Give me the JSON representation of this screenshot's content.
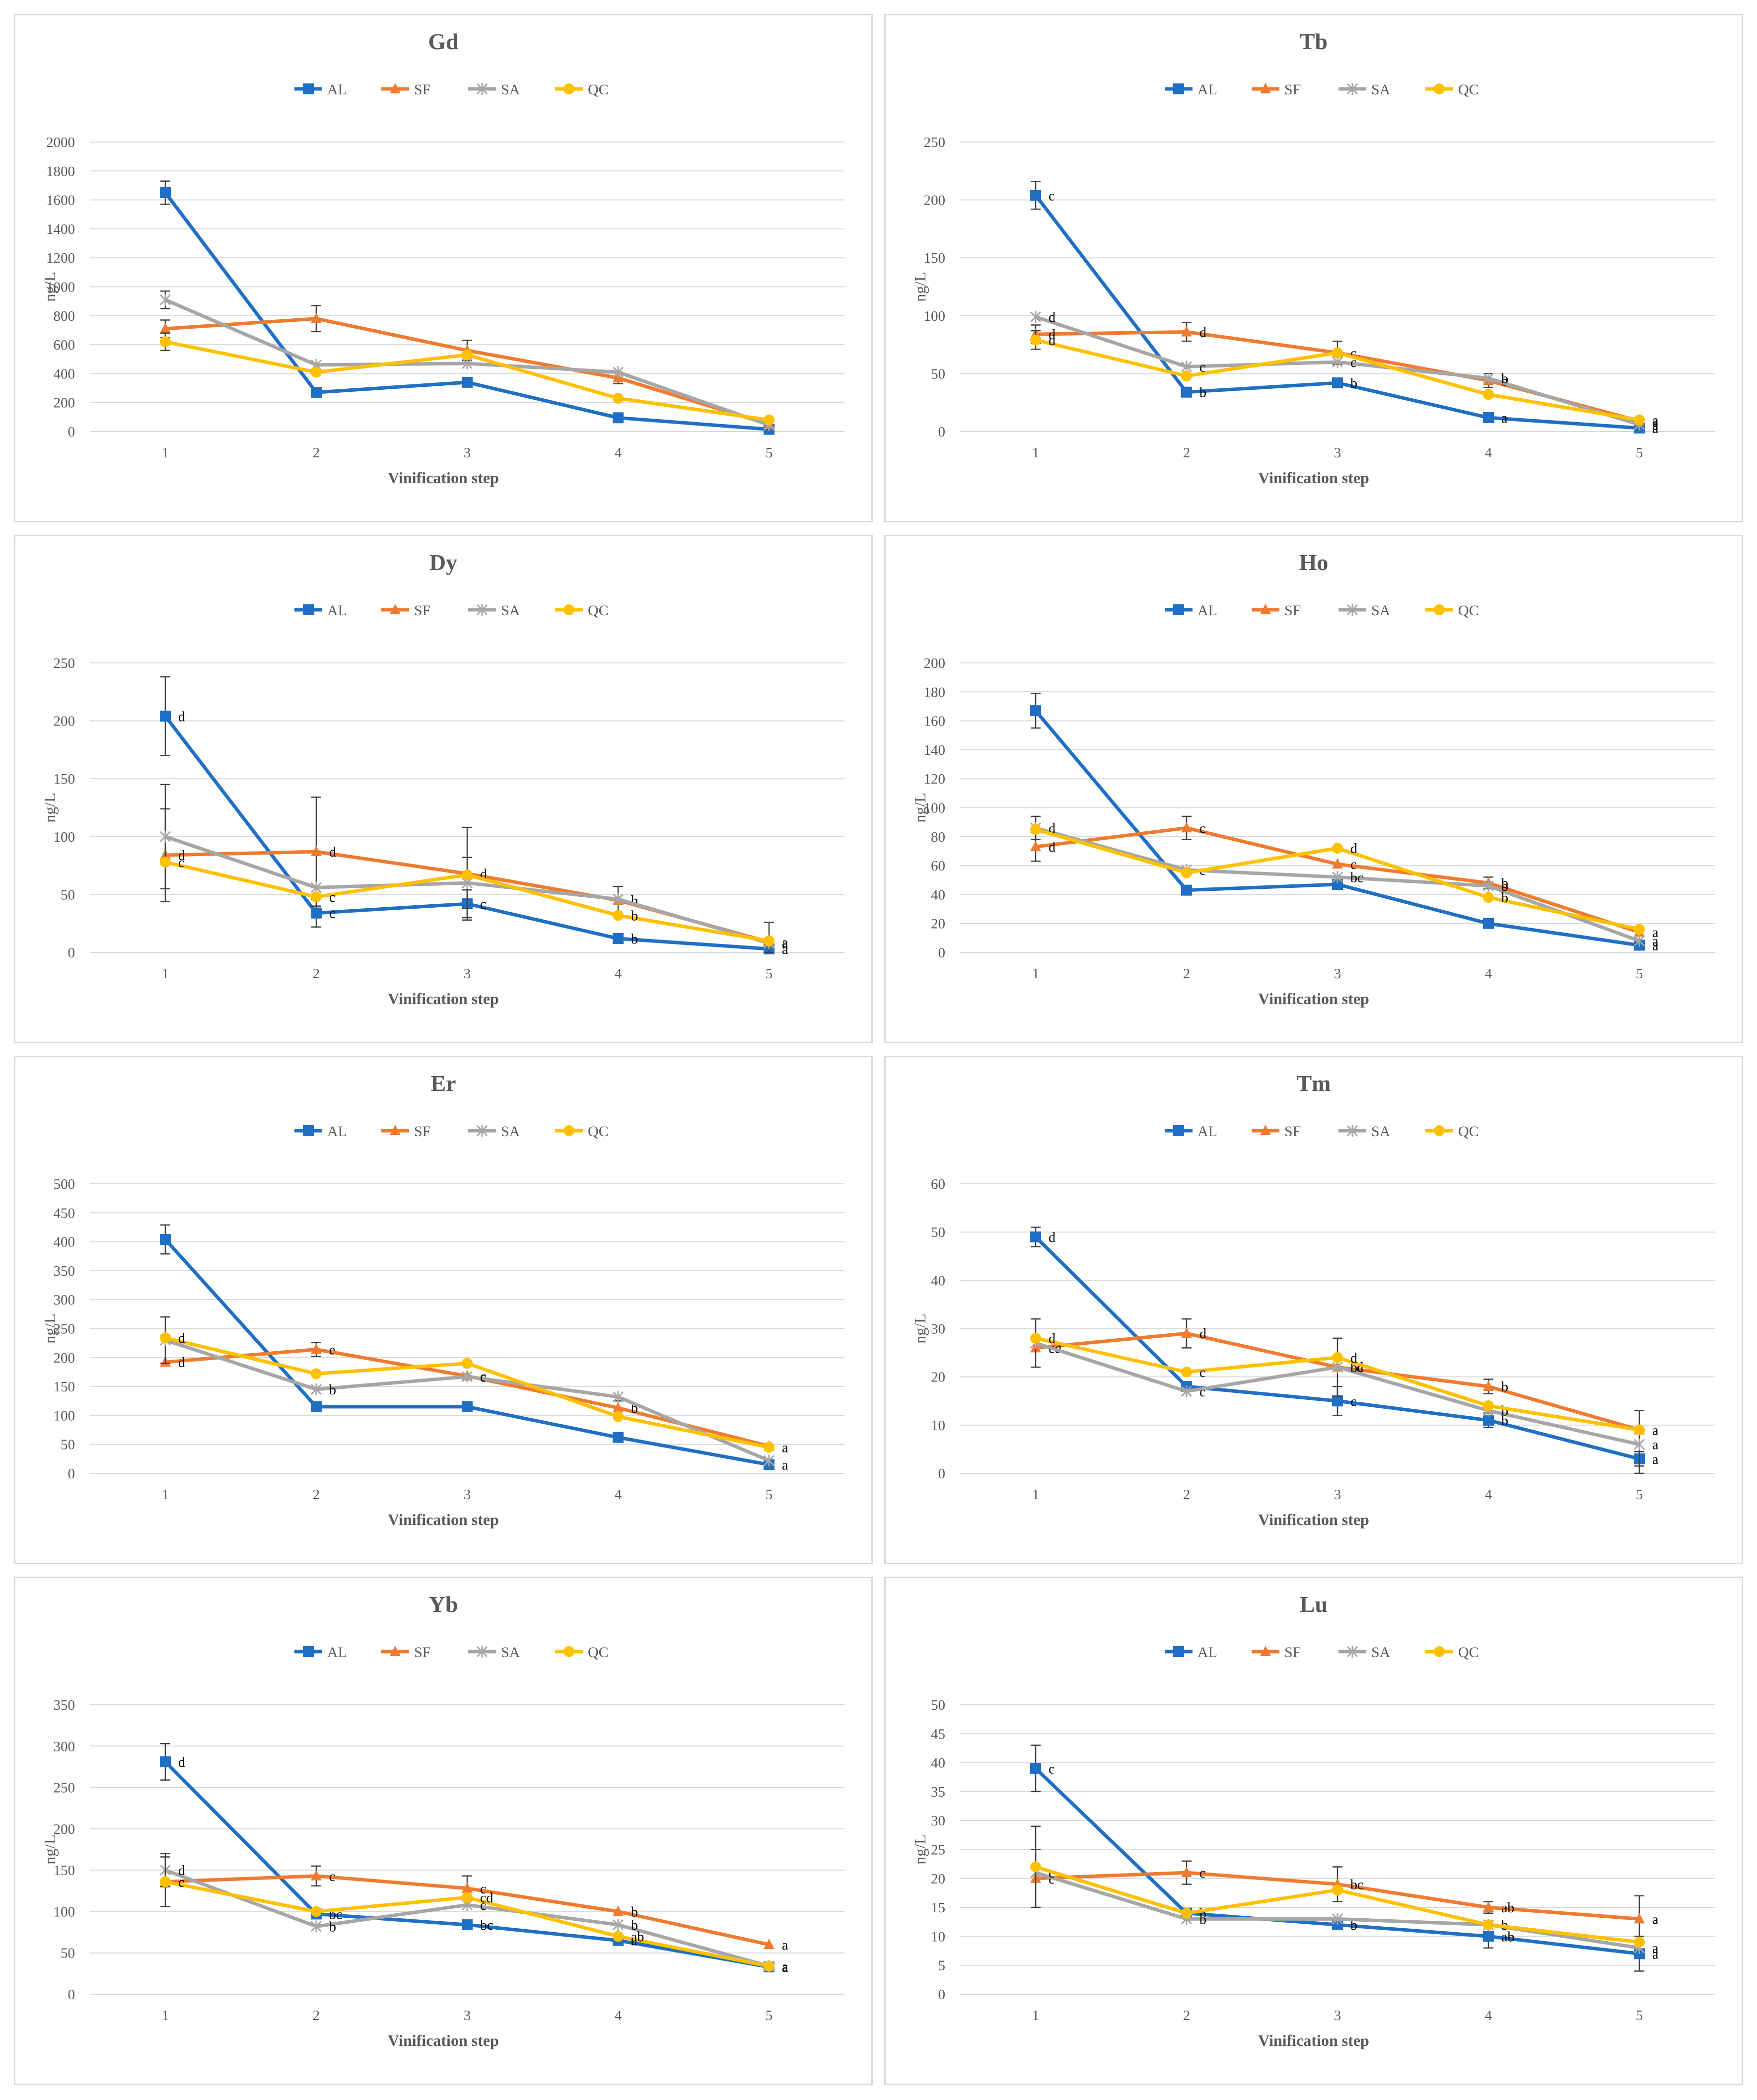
{
  "colors": {
    "AL": "#1f6fc5",
    "SF": "#f07b2f",
    "SA": "#a6a6a6",
    "QC": "#ffc000",
    "grid": "#d9d9d9",
    "text": "#595959"
  },
  "legend": [
    "AL",
    "SF",
    "SA",
    "QC"
  ],
  "chart_data": [
    {
      "type": "line",
      "title": "Gd",
      "xlabel": "Vinification step",
      "ylabel": "ng/L",
      "categories": [
        "1",
        "2",
        "3",
        "4",
        "5"
      ],
      "ylim": [
        0,
        2000
      ],
      "yticks": [
        "0",
        "200",
        "400",
        "600",
        "800",
        "1000",
        "1200",
        "1400",
        "1600",
        "1800",
        "2000"
      ],
      "series": [
        {
          "name": "AL",
          "values": [
            1650,
            270,
            340,
            95,
            15
          ],
          "errors": [
            80,
            0,
            0,
            0,
            0
          ],
          "letters": [
            "",
            "",
            "",
            "",
            ""
          ]
        },
        {
          "name": "SF",
          "values": [
            710,
            780,
            560,
            370,
            50
          ],
          "errors": [
            60,
            90,
            70,
            40,
            0
          ],
          "letters": [
            "",
            "",
            "",
            "",
            ""
          ]
        },
        {
          "name": "SA",
          "values": [
            910,
            460,
            470,
            410,
            45
          ],
          "errors": [
            60,
            0,
            0,
            0,
            0
          ],
          "letters": [
            "",
            "",
            "",
            "",
            ""
          ]
        },
        {
          "name": "QC",
          "values": [
            620,
            410,
            530,
            230,
            80
          ],
          "errors": [
            60,
            0,
            0,
            0,
            0
          ],
          "letters": [
            "",
            "",
            "",
            "",
            ""
          ]
        }
      ]
    },
    {
      "type": "line",
      "title": "Tb",
      "xlabel": "Vinification step",
      "ylabel": "ng/L",
      "categories": [
        "1",
        "2",
        "3",
        "4",
        "5"
      ],
      "ylim": [
        0,
        250
      ],
      "yticks": [
        "0",
        "50",
        "100",
        "150",
        "200",
        "250"
      ],
      "series": [
        {
          "name": "AL",
          "values": [
            204,
            34,
            42,
            12,
            3
          ],
          "errors": [
            12,
            0,
            0,
            0,
            0
          ],
          "letters": [
            "c",
            "b",
            "b",
            "a",
            "a"
          ]
        },
        {
          "name": "SF",
          "values": [
            84,
            86,
            68,
            44,
            9
          ],
          "errors": [
            8,
            8,
            10,
            6,
            0
          ],
          "letters": [
            "d",
            "d",
            "c",
            "b",
            "a"
          ]
        },
        {
          "name": "SA",
          "values": [
            99,
            56,
            60,
            46,
            6
          ],
          "errors": [
            0,
            0,
            0,
            0,
            0
          ],
          "letters": [
            "d",
            "c",
            "c",
            "b",
            "a"
          ]
        },
        {
          "name": "QC",
          "values": [
            79,
            48,
            68,
            32,
            10
          ],
          "errors": [
            8,
            0,
            0,
            0,
            0
          ],
          "letters": [
            "d",
            "",
            "",
            "",
            "a"
          ]
        }
      ]
    },
    {
      "type": "line",
      "title": "Dy",
      "xlabel": "Vinification step",
      "ylabel": "ng/L",
      "categories": [
        "1",
        "2",
        "3",
        "4",
        "5"
      ],
      "ylim": [
        0,
        250
      ],
      "yticks": [
        "0",
        "50",
        "100",
        "150",
        "200",
        "250"
      ],
      "series": [
        {
          "name": "AL",
          "values": [
            204,
            34,
            42,
            12,
            3
          ],
          "errors": [
            34,
            12,
            12,
            0,
            0
          ],
          "letters": [
            "d",
            "c",
            "c",
            "b",
            "a"
          ]
        },
        {
          "name": "SF",
          "values": [
            84,
            87,
            68,
            45,
            9
          ],
          "errors": [
            40,
            47,
            40,
            12,
            0
          ],
          "letters": [
            "d",
            "d",
            "d",
            "b",
            "a"
          ]
        },
        {
          "name": "SA",
          "values": [
            100,
            56,
            60,
            46,
            8
          ],
          "errors": [
            45,
            0,
            22,
            0,
            18
          ],
          "letters": [
            "",
            "",
            "",
            "",
            "a"
          ]
        },
        {
          "name": "QC",
          "values": [
            78,
            48,
            67,
            32,
            10
          ],
          "errors": [
            0,
            0,
            0,
            0,
            0
          ],
          "letters": [
            "c",
            "c",
            "",
            "b",
            ""
          ]
        }
      ]
    },
    {
      "type": "line",
      "title": "Ho",
      "xlabel": "Vinification step",
      "ylabel": "ng/L",
      "categories": [
        "1",
        "2",
        "3",
        "4",
        "5"
      ],
      "ylim": [
        0,
        200
      ],
      "yticks": [
        "0",
        "20",
        "40",
        "60",
        "80",
        "100",
        "120",
        "140",
        "160",
        "180",
        "200"
      ],
      "series": [
        {
          "name": "AL",
          "values": [
            167,
            43,
            47,
            20,
            5
          ],
          "errors": [
            12,
            0,
            0,
            0,
            0
          ],
          "letters": [
            "",
            "",
            "",
            "",
            "a"
          ]
        },
        {
          "name": "SF",
          "values": [
            73,
            86,
            61,
            48,
            14
          ],
          "errors": [
            10,
            8,
            0,
            4,
            0
          ],
          "letters": [
            "d",
            "c",
            "c",
            "b",
            "a"
          ]
        },
        {
          "name": "SA",
          "values": [
            86,
            57,
            52,
            46,
            8
          ],
          "errors": [
            8,
            0,
            0,
            0,
            0
          ],
          "letters": [
            "d",
            "c",
            "bc",
            "b",
            "a"
          ]
        },
        {
          "name": "QC",
          "values": [
            85,
            55,
            72,
            38,
            16
          ],
          "errors": [
            0,
            0,
            0,
            0,
            0
          ],
          "letters": [
            "",
            "",
            "d",
            "b",
            ""
          ]
        }
      ]
    },
    {
      "type": "line",
      "title": "Er",
      "xlabel": "Vinification step",
      "ylabel": "ng/L",
      "categories": [
        "1",
        "2",
        "3",
        "4",
        "5"
      ],
      "ylim": [
        0,
        500
      ],
      "yticks": [
        "0",
        "50",
        "100",
        "150",
        "200",
        "250",
        "300",
        "350",
        "400",
        "450",
        "500"
      ],
      "series": [
        {
          "name": "AL",
          "values": [
            404,
            115,
            115,
            62,
            15
          ],
          "errors": [
            25,
            0,
            0,
            0,
            0
          ],
          "letters": [
            "",
            "",
            "",
            "",
            "a"
          ]
        },
        {
          "name": "SF",
          "values": [
            192,
            214,
            168,
            113,
            47
          ],
          "errors": [
            0,
            12,
            0,
            12,
            0
          ],
          "letters": [
            "d",
            "e",
            "c",
            "b",
            ""
          ]
        },
        {
          "name": "SA",
          "values": [
            230,
            145,
            167,
            132,
            22
          ],
          "errors": [
            40,
            0,
            0,
            0,
            0
          ],
          "letters": [
            "",
            "b",
            "c",
            "",
            ""
          ]
        },
        {
          "name": "QC",
          "values": [
            234,
            172,
            190,
            98,
            45
          ],
          "errors": [
            0,
            0,
            0,
            0,
            0
          ],
          "letters": [
            "d",
            "",
            "",
            "",
            "a"
          ]
        }
      ]
    },
    {
      "type": "line",
      "title": "Tm",
      "xlabel": "Vinification step",
      "ylabel": "ng/L",
      "categories": [
        "1",
        "2",
        "3",
        "4",
        "5"
      ],
      "ylim": [
        0,
        60
      ],
      "yticks": [
        "0",
        "10",
        "20",
        "30",
        "40",
        "50",
        "60"
      ],
      "series": [
        {
          "name": "AL",
          "values": [
            49,
            18,
            15,
            11,
            3
          ],
          "errors": [
            2,
            0,
            3,
            1.5,
            1.5
          ],
          "letters": [
            "d",
            "",
            "c",
            "b",
            "a"
          ]
        },
        {
          "name": "SF",
          "values": [
            26,
            29,
            22,
            18,
            9
          ],
          "errors": [
            0,
            3,
            0,
            1.5,
            0
          ],
          "letters": [
            "cd",
            "d",
            "cd",
            "b",
            "a"
          ]
        },
        {
          "name": "SA",
          "values": [
            27,
            17,
            22,
            13,
            6
          ],
          "errors": [
            5,
            0,
            6,
            0,
            7
          ],
          "letters": [
            "",
            "c",
            "bc",
            "b",
            "a"
          ]
        },
        {
          "name": "QC",
          "values": [
            28,
            21,
            24,
            14,
            9
          ],
          "errors": [
            0,
            0,
            0,
            0,
            0
          ],
          "letters": [
            "d",
            "c",
            "d",
            "",
            ""
          ]
        }
      ]
    },
    {
      "type": "line",
      "title": "Yb",
      "xlabel": "Vinification step",
      "ylabel": "ng/L",
      "categories": [
        "1",
        "2",
        "3",
        "4",
        "5"
      ],
      "ylim": [
        0,
        350
      ],
      "yticks": [
        "0",
        "50",
        "100",
        "150",
        "200",
        "250",
        "300",
        "350"
      ],
      "series": [
        {
          "name": "AL",
          "values": [
            281,
            97,
            84,
            65,
            33
          ],
          "errors": [
            22,
            0,
            0,
            0,
            0
          ],
          "letters": [
            "d",
            "bc",
            "bc",
            "a",
            "a"
          ]
        },
        {
          "name": "SF",
          "values": [
            136,
            143,
            128,
            100,
            60
          ],
          "errors": [
            0,
            12,
            15,
            0,
            0
          ],
          "letters": [
            "c",
            "c",
            "c",
            "b",
            "a"
          ]
        },
        {
          "name": "SA",
          "values": [
            150,
            82,
            108,
            84,
            34
          ],
          "errors": [
            20,
            0,
            0,
            0,
            0
          ],
          "letters": [
            "d",
            "b",
            "c",
            "b",
            "a"
          ]
        },
        {
          "name": "QC",
          "values": [
            136,
            100,
            117,
            70,
            34
          ],
          "errors": [
            30,
            0,
            0,
            0,
            0
          ],
          "letters": [
            "c",
            "",
            "cd",
            "ab",
            ""
          ]
        }
      ]
    },
    {
      "type": "line",
      "title": "Lu",
      "xlabel": "Vinification step",
      "ylabel": "ng/L",
      "categories": [
        "1",
        "2",
        "3",
        "4",
        "5"
      ],
      "ylim": [
        0,
        50
      ],
      "yticks": [
        "0",
        "5",
        "10",
        "15",
        "20",
        "25",
        "30",
        "35",
        "40",
        "45",
        "50"
      ],
      "series": [
        {
          "name": "AL",
          "values": [
            39,
            14,
            12,
            10,
            7
          ],
          "errors": [
            4,
            0,
            0,
            2,
            3
          ],
          "letters": [
            "c",
            "b",
            "b",
            "ab",
            "a"
          ]
        },
        {
          "name": "SF",
          "values": [
            20,
            21,
            19,
            15,
            13
          ],
          "errors": [
            5,
            2,
            3,
            1,
            4
          ],
          "letters": [
            "c",
            "c",
            "bc",
            "ab",
            "a"
          ]
        },
        {
          "name": "SA",
          "values": [
            21,
            13,
            13,
            12,
            8
          ],
          "errors": [
            0,
            0,
            0,
            0,
            0
          ],
          "letters": [
            "c",
            "b",
            "",
            "b",
            "a"
          ]
        },
        {
          "name": "QC",
          "values": [
            22,
            14,
            18,
            12,
            9
          ],
          "errors": [
            7,
            0,
            0,
            0,
            0
          ],
          "letters": [
            "",
            "",
            "",
            "",
            ""
          ]
        }
      ]
    }
  ]
}
